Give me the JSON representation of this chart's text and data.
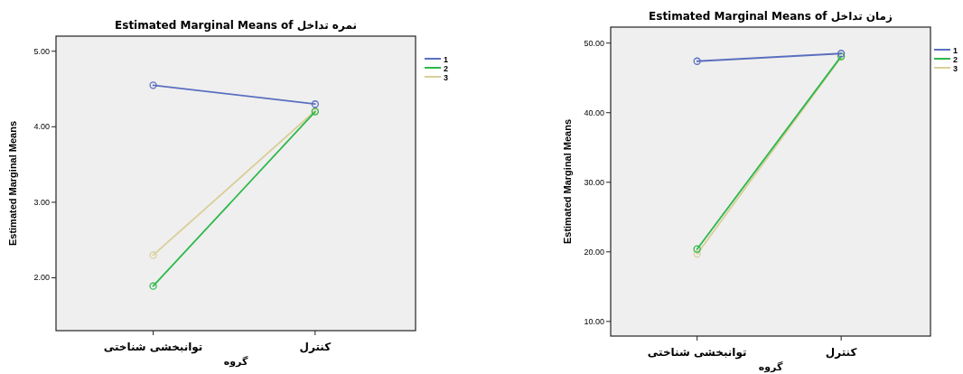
{
  "chart_data": [
    {
      "type": "line",
      "title": "Estimated Marginal Means of  نمره تداخل",
      "xlabel": "گروه",
      "ylabel": "Estimated Marginal Means",
      "categories": [
        "توانبخشی شناختی",
        "کنترل"
      ],
      "ylim": [
        1.3,
        5.2
      ],
      "yticks": [
        {
          "value": 2,
          "label": "2.00"
        },
        {
          "value": 3,
          "label": "3.00"
        },
        {
          "value": 4,
          "label": "4.00"
        },
        {
          "value": 5,
          "label": "5.00"
        }
      ],
      "marker": "circle",
      "legend": "right",
      "grid": false,
      "series": [
        {
          "name": "1",
          "color": "#5b6fc0",
          "values": [
            4.55,
            4.3
          ]
        },
        {
          "name": "2",
          "color": "#2eb84a",
          "values": [
            1.89,
            4.2
          ]
        },
        {
          "name": "3",
          "color": "#d9cf9a",
          "values": [
            2.3,
            4.21
          ]
        }
      ]
    },
    {
      "type": "line",
      "title": "Estimated Marginal Means of  زمان تداخل",
      "xlabel": "گروه",
      "ylabel": "Estimated Marginal Means",
      "categories": [
        "توانبخشی شناختی",
        "کنترل"
      ],
      "ylim": [
        7.9,
        52.3
      ],
      "yticks": [
        {
          "value": 10,
          "label": "10.00"
        },
        {
          "value": 20,
          "label": "20.00"
        },
        {
          "value": 30,
          "label": "30.00"
        },
        {
          "value": 40,
          "label": "40.00"
        },
        {
          "value": 50,
          "label": "50.00"
        }
      ],
      "marker": "circle",
      "legend": "right",
      "grid": false,
      "series": [
        {
          "name": "1",
          "color": "#5b6fc0",
          "values": [
            47.4,
            48.5
          ]
        },
        {
          "name": "2",
          "color": "#2eb84a",
          "values": [
            20.4,
            48.1
          ]
        },
        {
          "name": "3",
          "color": "#d9cf9a",
          "values": [
            19.7,
            48.0
          ]
        }
      ]
    }
  ]
}
